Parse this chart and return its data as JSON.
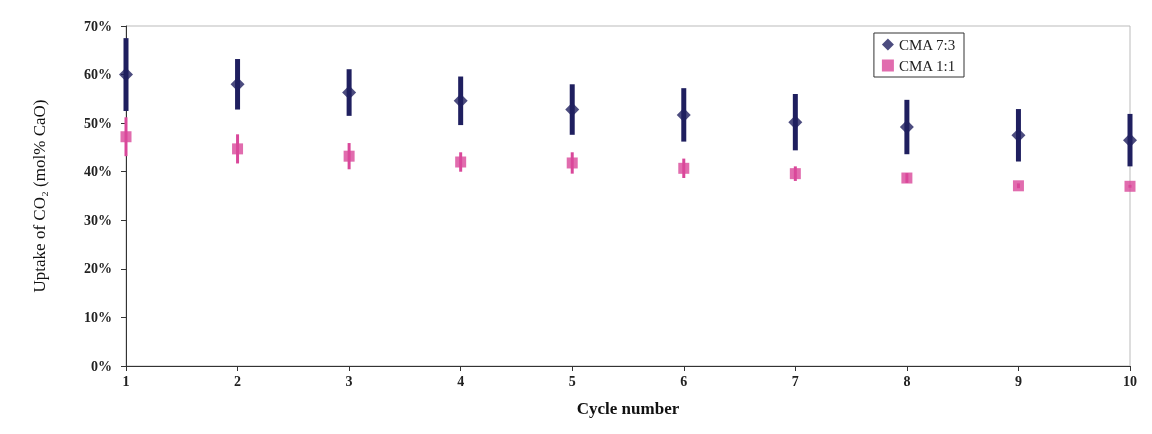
{
  "chart_data": {
    "type": "scatter",
    "xlabel": "Cycle number",
    "ylabel": "Uptake of CO₂ (mol% CaO)",
    "x": [
      1,
      2,
      3,
      4,
      5,
      6,
      7,
      8,
      9,
      10
    ],
    "series": [
      {
        "name": "CMA 7:3",
        "color": "#1f1f5f",
        "marker": "diamond",
        "values": [
          60,
          58,
          56.3,
          54.6,
          52.8,
          51.7,
          50.2,
          49.2,
          47.5,
          46.5
        ],
        "errors": [
          7.5,
          5.2,
          4.8,
          5,
          5.2,
          5.5,
          5.8,
          5.6,
          5.4,
          5.4
        ]
      },
      {
        "name": "CMA 1:1",
        "color": "#d9479a",
        "marker": "square",
        "values": [
          47.2,
          44.7,
          43.2,
          42,
          41.8,
          40.7,
          39.6,
          38.7,
          37.1,
          37
        ],
        "errors": [
          4,
          3,
          2.7,
          2,
          2.2,
          2,
          1.5,
          1,
          0.5,
          0.3
        ]
      }
    ],
    "xlim": [
      1,
      10
    ],
    "xticks": [
      1,
      2,
      3,
      4,
      5,
      6,
      7,
      8,
      9,
      10
    ],
    "ylim": [
      0,
      70
    ],
    "yticks": [
      {
        "value": 0,
        "label": "0%"
      },
      {
        "value": 10,
        "label": "10%"
      },
      {
        "value": 20,
        "label": "20%"
      },
      {
        "value": 30,
        "label": "30%"
      },
      {
        "value": 40,
        "label": "40%"
      },
      {
        "value": 50,
        "label": "50%"
      },
      {
        "value": 60,
        "label": "60%"
      },
      {
        "value": 70,
        "label": "70%"
      }
    ],
    "grid": false,
    "legend": "top right"
  }
}
